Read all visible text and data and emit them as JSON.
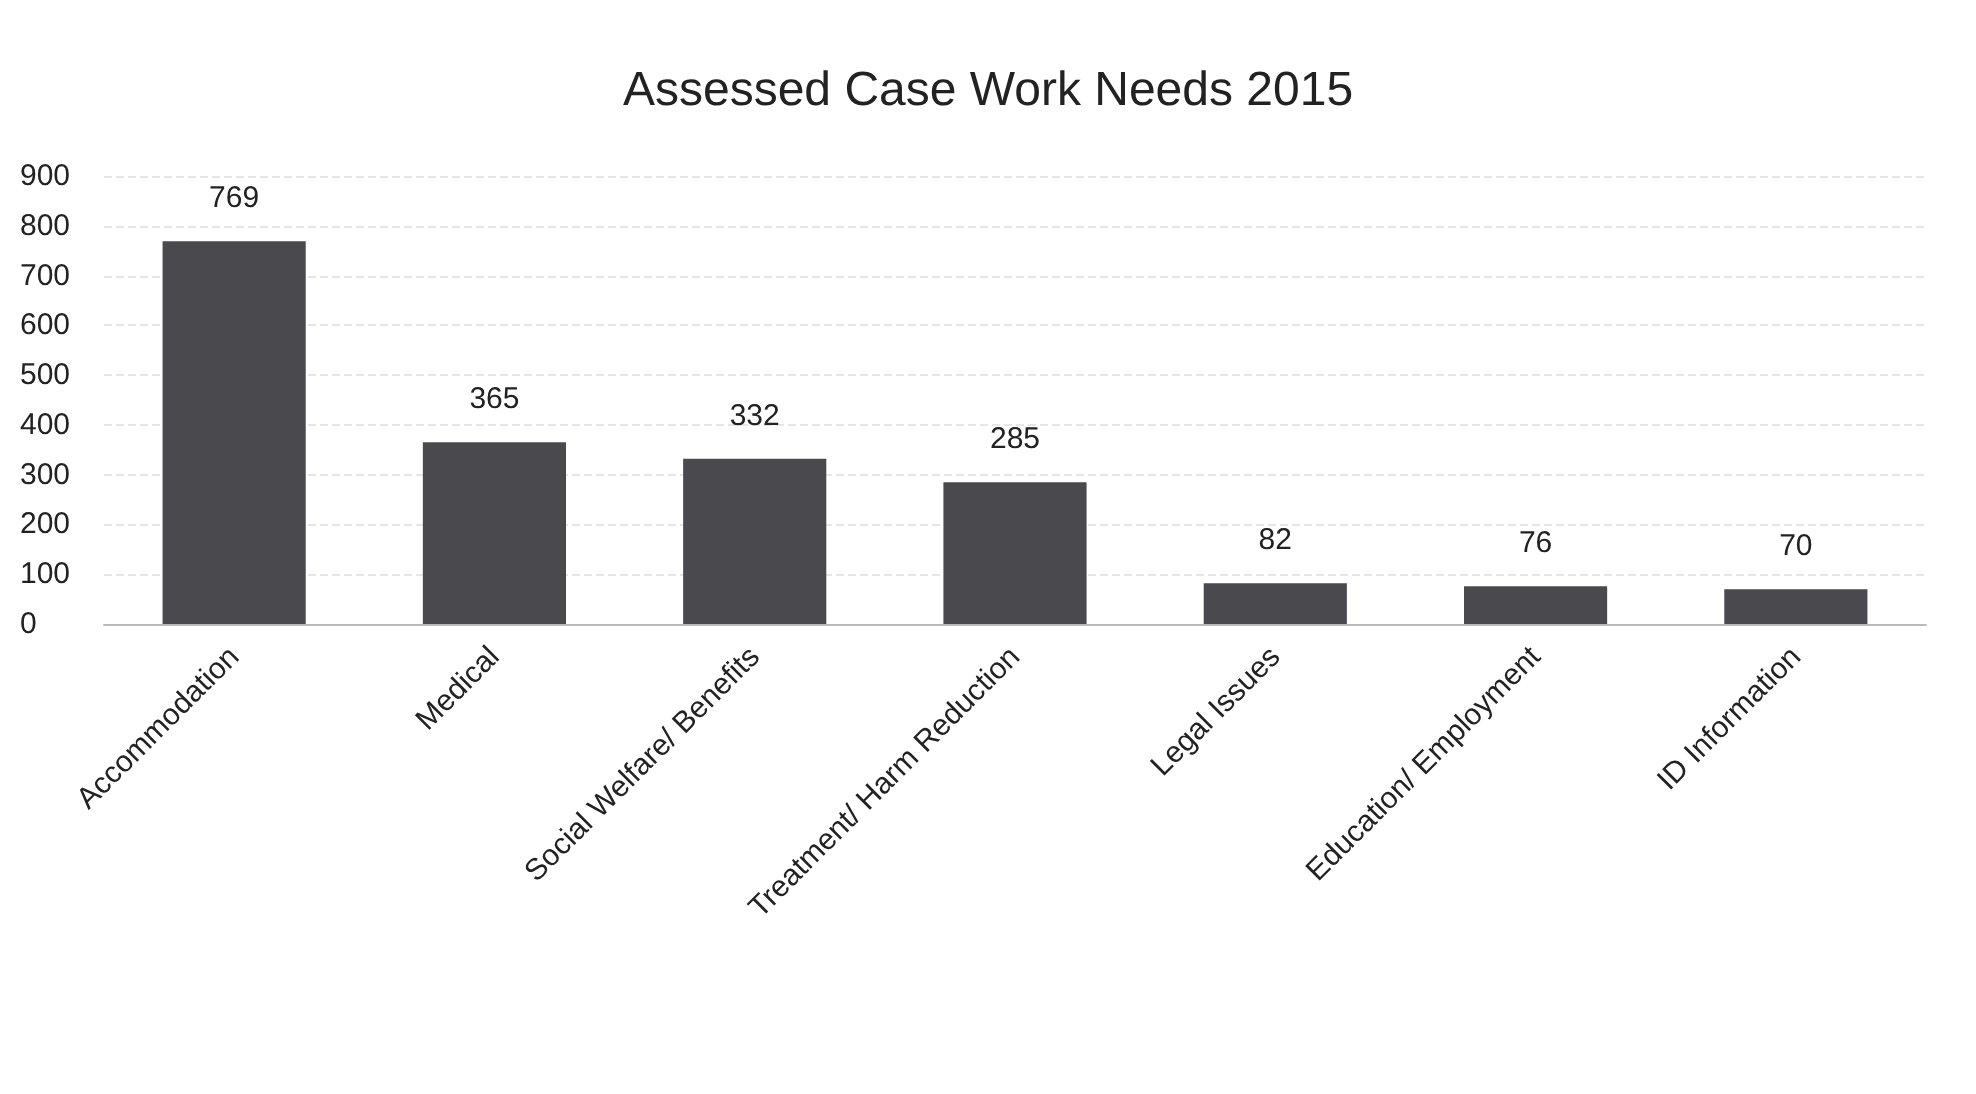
{
  "chart_data": {
    "type": "bar",
    "title": "Assessed Case Work Needs 2015",
    "categories": [
      "Accommodation",
      "Medical",
      "Social Welfare/ Benefits",
      "Treatment/ Harm Reduction",
      "Legal Issues",
      "Education/ Employment",
      "ID Information"
    ],
    "values": [
      769,
      365,
      332,
      285,
      82,
      76,
      70
    ],
    "color": "#4a494e",
    "ylim": [
      0,
      900
    ],
    "yticks": [
      0,
      100,
      200,
      300,
      400,
      500,
      600,
      700,
      800,
      900
    ],
    "grid": "y",
    "data_labels": true
  }
}
